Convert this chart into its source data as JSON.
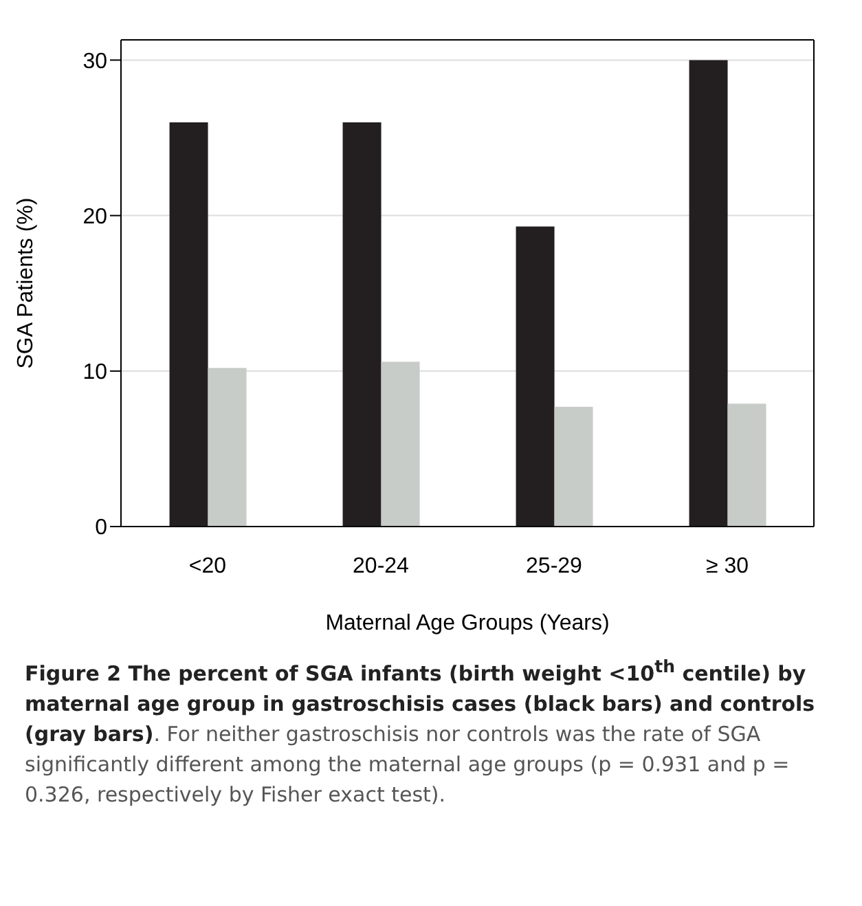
{
  "chart_data": {
    "type": "bar",
    "title": "Figure 2 The percent of SGA infants (birth weight <10$^{th}$ centile) by maternal age group in gastroschisis cases (black bars) and controls (gray bars)",
    "annotations": [
      ". For neither gastroschisis nor controls was the rate of SGA significantly different among the maternal age groups (p = 0.931 and p = 0.326, respectively by Fisher exact test)."
    ],
    "xlabel": "Maternal Age Groups (Years)",
    "ylabel": "SGA Patients (%)",
    "categories": [
      "<20",
      "20-24",
      "25-29",
      "≥ 30"
    ],
    "series": [
      {
        "color": "#231f20",
        "values": [
          26.0,
          26.0,
          19.3,
          30.0
        ]
      },
      {
        "color": "#c8ccc8",
        "values": [
          10.2,
          10.6,
          7.7,
          7.9
        ]
      }
    ],
    "ylim": [
      0,
      31.3
    ],
    "yticks": [
      0,
      10,
      20,
      30
    ],
    "grid": "y",
    "legend": false
  }
}
